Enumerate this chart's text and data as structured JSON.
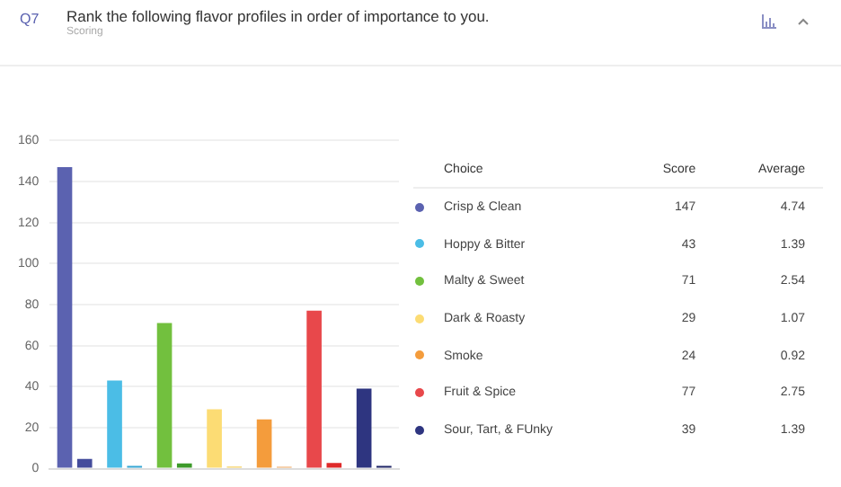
{
  "chart_data": [
    {
      "type": "bar",
      "title": "Rank the following flavor profiles in order of importance to you.",
      "subtitle": "Scoring",
      "annotations": [
        "Q7"
      ],
      "categories": [
        null,
        null,
        null,
        null,
        null,
        null,
        null
      ],
      "series": [
        {
          "colors": [
            "#5b62b0",
            "#4bbde6",
            "#72c03e",
            "#fcdc74",
            "#f49c3c",
            "#e8484b",
            "#2e3580"
          ],
          "values": [
            147,
            43,
            71,
            29,
            24,
            77,
            39
          ]
        },
        {
          "colors": [
            "#444c9c",
            "#35a6d4",
            "#3d9a2a",
            "#f6d060",
            "#eea35c",
            "#df2a2a",
            "#1e2466"
          ],
          "values": [
            4.74,
            1.39,
            2.54,
            1.07,
            0.92,
            2.75,
            1.39
          ]
        }
      ],
      "ylim": [
        0,
        160
      ],
      "yticks": [
        0,
        20,
        40,
        60,
        80,
        100,
        120,
        140,
        160
      ],
      "grid": "y",
      "tick_labels": "y"
    },
    {
      "type": "other",
      "xlabel": "Choice",
      "categories": [
        "Crisp & Clean",
        "Hoppy & Bitter",
        "Malty & Sweet",
        "Dark & Roasty",
        "Smoke",
        "Fruit & Spice",
        "Sour, Tart, & FUnky"
      ],
      "colors": [
        "#5b62b0",
        "#4bbde6",
        "#72c03e",
        "#fcdc74",
        "#f49c3c",
        "#e8484b",
        "#2e3580"
      ],
      "series": [
        {
          "name": "Score",
          "values": [
            147,
            43,
            71,
            29,
            24,
            77,
            39
          ]
        },
        {
          "name": "Average",
          "values": [
            4.74,
            1.39,
            2.54,
            1.07,
            0.92,
            2.75,
            1.39
          ]
        }
      ],
      "data_labels": true
    }
  ]
}
